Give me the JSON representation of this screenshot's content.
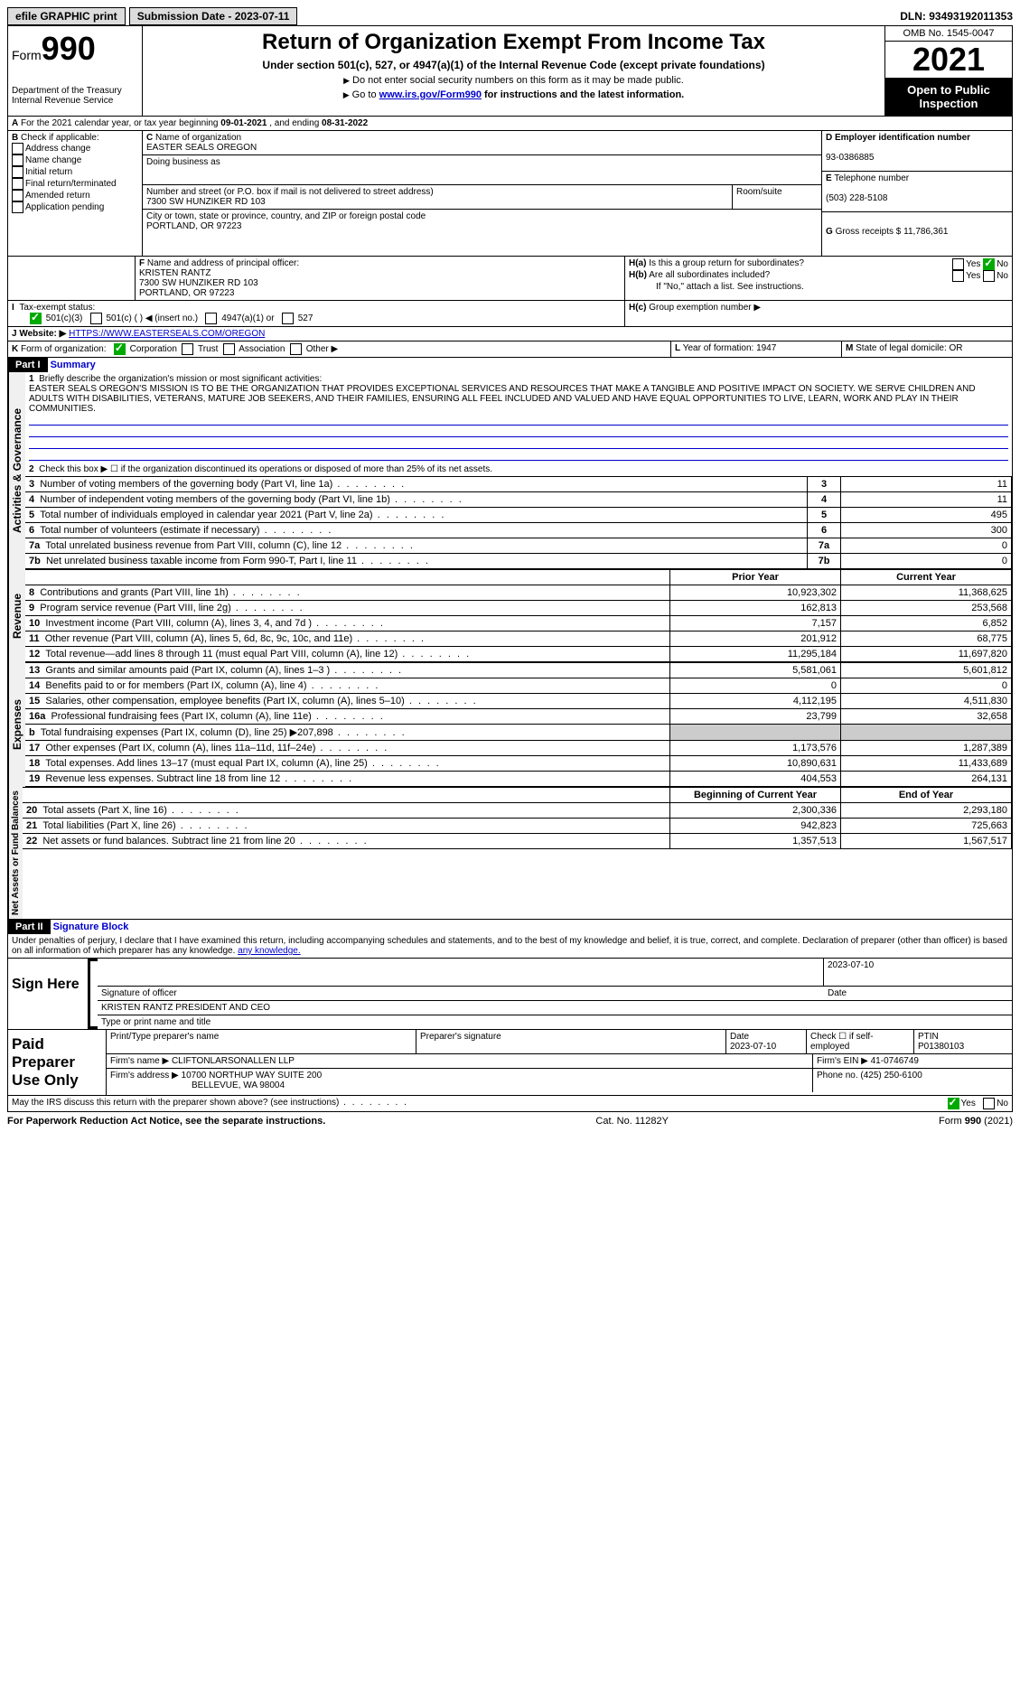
{
  "topbar": {
    "efile": "efile GRAPHIC print",
    "submission_label": "Submission Date - ",
    "submission_date": "2023-07-11",
    "dln_label": "DLN: ",
    "dln": "93493192011353"
  },
  "header": {
    "form_prefix": "Form",
    "form_num": "990",
    "dept": "Department of the Treasury",
    "irs": "Internal Revenue Service",
    "title": "Return of Organization Exempt From Income Tax",
    "subtitle": "Under section 501(c), 527, or 4947(a)(1) of the Internal Revenue Code (except private foundations)",
    "note1": "Do not enter social security numbers on this form as it may be made public.",
    "note2_pre": "Go to ",
    "note2_link": "www.irs.gov/Form990",
    "note2_post": " for instructions and the latest information.",
    "omb": "OMB No. 1545-0047",
    "year": "2021",
    "open_pub": "Open to Public Inspection"
  },
  "A": {
    "text_pre": "For the 2021 calendar year, or tax year beginning ",
    "begin": "09-01-2021",
    "mid": " , and ending ",
    "end": "08-31-2022"
  },
  "B": {
    "label": "Check if applicable:",
    "opts": [
      "Address change",
      "Name change",
      "Initial return",
      "Final return/terminated",
      "Amended return",
      "Application pending"
    ]
  },
  "C": {
    "name_label": "Name of organization",
    "name": "EASTER SEALS OREGON",
    "dba_label": "Doing business as",
    "street_label": "Number and street (or P.O. box if mail is not delivered to street address)",
    "street": "7300 SW HUNZIKER RD 103",
    "room_label": "Room/suite",
    "city_label": "City or town, state or province, country, and ZIP or foreign postal code",
    "city": "PORTLAND, OR  97223"
  },
  "D": {
    "label": "Employer identification number",
    "value": "93-0386885"
  },
  "E": {
    "label": "Telephone number",
    "value": "(503) 228-5108"
  },
  "G": {
    "label": "Gross receipts $ ",
    "value": "11,786,361"
  },
  "F": {
    "label": "Name and address of principal officer:",
    "name": "KRISTEN RANTZ",
    "addr1": "7300 SW HUNZIKER RD 103",
    "addr2": "PORTLAND, OR  97223"
  },
  "H": {
    "a": "Is this a group return for subordinates?",
    "b": "Are all subordinates included?",
    "b_note": "If \"No,\" attach a list. See instructions.",
    "c": "Group exemption number ▶",
    "yes": "Yes",
    "no": "No"
  },
  "I": {
    "label": "Tax-exempt status:",
    "o1": "501(c)(3)",
    "o2": "501(c) (  ) ◀ (insert no.)",
    "o3": "4947(a)(1) or",
    "o4": "527"
  },
  "J": {
    "label": "Website: ▶",
    "value": "HTTPS://WWW.EASTERSEALS.COM/OREGON"
  },
  "K": {
    "label": "Form of organization:",
    "opts": [
      "Corporation",
      "Trust",
      "Association",
      "Other ▶"
    ]
  },
  "L": {
    "label": "Year of formation: ",
    "value": "1947"
  },
  "M": {
    "label": "State of legal domicile: ",
    "value": "OR"
  },
  "part1": {
    "title": "Part I",
    "name": "Summary",
    "l1_label": "Briefly describe the organization's mission or most significant activities:",
    "l1_text": "EASTER SEALS OREGON'S MISSION IS TO BE THE ORGANIZATION THAT PROVIDES EXCEPTIONAL SERVICES AND RESOURCES THAT MAKE A TANGIBLE AND POSITIVE IMPACT ON SOCIETY. WE SERVE CHILDREN AND ADULTS WITH DISABILITIES, VETERANS, MATURE JOB SEEKERS, AND THEIR FAMILIES, ENSURING ALL FEEL INCLUDED AND VALUED AND HAVE EQUAL OPPORTUNITIES TO LIVE, LEARN, WORK AND PLAY IN THEIR COMMUNITIES.",
    "l2": "Check this box ▶ ☐ if the organization discontinued its operations or disposed of more than 25% of its net assets.",
    "sidetabs": [
      "Activities & Governance",
      "Revenue",
      "Expenses",
      "Net Assets or Fund Balances"
    ],
    "gov_rows": [
      {
        "n": "3",
        "t": "Number of voting members of the governing body (Part VI, line 1a)",
        "v": "11"
      },
      {
        "n": "4",
        "t": "Number of independent voting members of the governing body (Part VI, line 1b)",
        "v": "11"
      },
      {
        "n": "5",
        "t": "Total number of individuals employed in calendar year 2021 (Part V, line 2a)",
        "v": "495"
      },
      {
        "n": "6",
        "t": "Total number of volunteers (estimate if necessary)",
        "v": "300"
      },
      {
        "n": "7a",
        "t": "Total unrelated business revenue from Part VIII, column (C), line 12",
        "v": "0"
      },
      {
        "n": "7b",
        "t": "Net unrelated business taxable income from Form 990-T, Part I, line 11",
        "v": "0"
      }
    ],
    "col_prior": "Prior Year",
    "col_curr": "Current Year",
    "rev_rows": [
      {
        "n": "8",
        "t": "Contributions and grants (Part VIII, line 1h)",
        "p": "10,923,302",
        "c": "11,368,625"
      },
      {
        "n": "9",
        "t": "Program service revenue (Part VIII, line 2g)",
        "p": "162,813",
        "c": "253,568"
      },
      {
        "n": "10",
        "t": "Investment income (Part VIII, column (A), lines 3, 4, and 7d )",
        "p": "7,157",
        "c": "6,852"
      },
      {
        "n": "11",
        "t": "Other revenue (Part VIII, column (A), lines 5, 6d, 8c, 9c, 10c, and 11e)",
        "p": "201,912",
        "c": "68,775"
      },
      {
        "n": "12",
        "t": "Total revenue—add lines 8 through 11 (must equal Part VIII, column (A), line 12)",
        "p": "11,295,184",
        "c": "11,697,820"
      }
    ],
    "exp_rows": [
      {
        "n": "13",
        "t": "Grants and similar amounts paid (Part IX, column (A), lines 1–3 )",
        "p": "5,581,061",
        "c": "5,601,812"
      },
      {
        "n": "14",
        "t": "Benefits paid to or for members (Part IX, column (A), line 4)",
        "p": "0",
        "c": "0"
      },
      {
        "n": "15",
        "t": "Salaries, other compensation, employee benefits (Part IX, column (A), lines 5–10)",
        "p": "4,112,195",
        "c": "4,511,830"
      },
      {
        "n": "16a",
        "t": "Professional fundraising fees (Part IX, column (A), line 11e)",
        "p": "23,799",
        "c": "32,658"
      },
      {
        "n": "b",
        "t": "Total fundraising expenses (Part IX, column (D), line 25) ▶207,898",
        "p": "",
        "c": "",
        "shade": true
      },
      {
        "n": "17",
        "t": "Other expenses (Part IX, column (A), lines 11a–11d, 11f–24e)",
        "p": "1,173,576",
        "c": "1,287,389"
      },
      {
        "n": "18",
        "t": "Total expenses. Add lines 13–17 (must equal Part IX, column (A), line 25)",
        "p": "10,890,631",
        "c": "11,433,689"
      },
      {
        "n": "19",
        "t": "Revenue less expenses. Subtract line 18 from line 12",
        "p": "404,553",
        "c": "264,131"
      }
    ],
    "col_begin": "Beginning of Current Year",
    "col_end": "End of Year",
    "na_rows": [
      {
        "n": "20",
        "t": "Total assets (Part X, line 16)",
        "p": "2,300,336",
        "c": "2,293,180"
      },
      {
        "n": "21",
        "t": "Total liabilities (Part X, line 26)",
        "p": "942,823",
        "c": "725,663"
      },
      {
        "n": "22",
        "t": "Net assets or fund balances. Subtract line 21 from line 20",
        "p": "1,357,513",
        "c": "1,567,517"
      }
    ]
  },
  "part2": {
    "title": "Part II",
    "name": "Signature Block",
    "perjury": "Under penalties of perjury, I declare that I have examined this return, including accompanying schedules and statements, and to the best of my knowledge and belief, it is true, correct, and complete. Declaration of preparer (other than officer) is based on all information of which preparer has any knowledge.",
    "sign_here": "Sign Here",
    "sig_officer": "Signature of officer",
    "sig_date": "2023-07-10",
    "date_lbl": "Date",
    "officer_name": "KRISTEN RANTZ  PRESIDENT AND CEO",
    "type_name": "Type or print name and title",
    "paid": "Paid Preparer Use Only",
    "prep_name_lbl": "Print/Type preparer's name",
    "prep_sig_lbl": "Preparer's signature",
    "prep_date": "2023-07-10",
    "check_if": "Check ☐ if self-employed",
    "ptin_lbl": "PTIN",
    "ptin": "P01380103",
    "firm_name_lbl": "Firm's name   ▶",
    "firm_name": "CLIFTONLARSONALLEN LLP",
    "firm_ein_lbl": "Firm's EIN ▶",
    "firm_ein": "41-0746749",
    "firm_addr_lbl": "Firm's address ▶",
    "firm_addr1": "10700 NORTHUP WAY SUITE 200",
    "firm_addr2": "BELLEVUE, WA  98004",
    "phone_lbl": "Phone no. ",
    "phone": "(425) 250-6100",
    "discuss": "May the IRS discuss this return with the preparer shown above? (see instructions)"
  },
  "footer": {
    "left": "For Paperwork Reduction Act Notice, see the separate instructions.",
    "mid": "Cat. No. 11282Y",
    "right_pre": "Form ",
    "right_form": "990",
    "right_post": " (2021)"
  }
}
